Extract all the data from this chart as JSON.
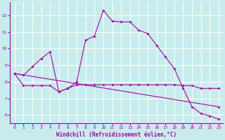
{
  "xlabel": "Windchill (Refroidissement éolien,°C)",
  "bg_color": "#c8ecec",
  "grid_color": "#ffffff",
  "line_color": "#aa00aa",
  "xlim": [
    -0.5,
    23.5
  ],
  "ylim": [
    5.5,
    12.8
  ],
  "yticks": [
    6,
    7,
    8,
    9,
    10,
    11,
    12
  ],
  "xticks": [
    0,
    1,
    2,
    3,
    4,
    5,
    6,
    7,
    8,
    9,
    10,
    11,
    12,
    13,
    14,
    15,
    16,
    17,
    18,
    19,
    20,
    21,
    22,
    23
  ],
  "series": [
    {
      "x": [
        0,
        1,
        2,
        3,
        4,
        5,
        6,
        7,
        8,
        9,
        10,
        11,
        12,
        13,
        14,
        15,
        16,
        17,
        18,
        19,
        20,
        21,
        22,
        23
      ],
      "y": [
        8.5,
        8.4,
        8.9,
        9.4,
        9.8,
        7.4,
        7.6,
        8.0,
        10.5,
        10.75,
        12.3,
        11.65,
        11.6,
        11.6,
        11.1,
        10.9,
        10.2,
        9.5,
        8.8,
        7.6,
        6.5,
        6.1,
        5.95,
        5.75
      ]
    },
    {
      "x": [
        0,
        1,
        2,
        3,
        4,
        5,
        6,
        7,
        8,
        9,
        10,
        11,
        12,
        13,
        14,
        15,
        16,
        17,
        18,
        19,
        20,
        21,
        22,
        23
      ],
      "y": [
        8.5,
        7.77,
        7.77,
        7.77,
        7.77,
        7.4,
        7.6,
        7.82,
        7.82,
        7.82,
        7.82,
        7.82,
        7.82,
        7.82,
        7.82,
        7.82,
        7.82,
        7.82,
        7.82,
        7.77,
        7.77,
        7.6,
        7.6,
        7.6
      ]
    },
    {
      "x": [
        0,
        23
      ],
      "y": [
        8.5,
        6.5
      ]
    }
  ]
}
